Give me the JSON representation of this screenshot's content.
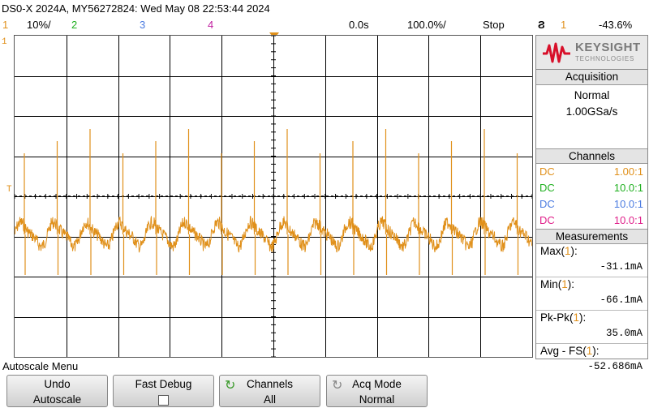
{
  "title": "DS0-X 2024A, MY56272824: Wed May 08 22:53:44 2024",
  "status": {
    "ch1_num": "1",
    "ch1_scale": "10%/",
    "ch2_num": "2",
    "ch3_num": "3",
    "ch4_num": "4",
    "time_delay": "0.0s",
    "timebase": "100.0%/",
    "run_state": "Stop",
    "trig_icon": "Ϩ",
    "trig_source": "1",
    "trig_level": "-43.6%"
  },
  "markers": {
    "ch1": "1",
    "trigger": "T"
  },
  "logo": {
    "brand": "KEYSIGHT",
    "sub": "TECHNOLOGIES"
  },
  "acquisition": {
    "header": "Acquisition",
    "mode": "Normal",
    "rate": "1.00GSa/s"
  },
  "channels": {
    "header": "Channels",
    "rows": [
      {
        "coupling": "DC",
        "ratio": "1.00:1",
        "color": "#e0901a"
      },
      {
        "coupling": "DC",
        "ratio": "10.0:1",
        "color": "#20b020"
      },
      {
        "coupling": "DC",
        "ratio": "10.0:1",
        "color": "#4b7be0"
      },
      {
        "coupling": "DC",
        "ratio": "10.0:1",
        "color": "#e0208a"
      }
    ]
  },
  "measurements": {
    "header": "Measurements",
    "items": [
      {
        "label": "Max(",
        "src": "1",
        "end": "):",
        "value": "-31.1mA"
      },
      {
        "label": "Min(",
        "src": "1",
        "end": "):",
        "value": "-66.1mA"
      },
      {
        "label": "Pk-Pk(",
        "src": "1",
        "end": "):",
        "value": "35.0mA"
      },
      {
        "label": "Avg - FS(",
        "src": "1",
        "end": "):",
        "value": "-52.686mA"
      }
    ]
  },
  "menu": {
    "title": "Autoscale Menu",
    "keys": [
      {
        "line1": "Undo",
        "line2": "Autoscale"
      },
      {
        "line1": "Fast Debug",
        "line2": ""
      },
      {
        "line1": "Channels",
        "line2": "All"
      },
      {
        "line1": "Acq Mode",
        "line2": "Normal"
      }
    ]
  },
  "colors": {
    "ch1": "#e0901a",
    "ch2": "#20b020",
    "ch3": "#4b7be0",
    "ch4": "#e0208a",
    "grid": "#000000"
  }
}
